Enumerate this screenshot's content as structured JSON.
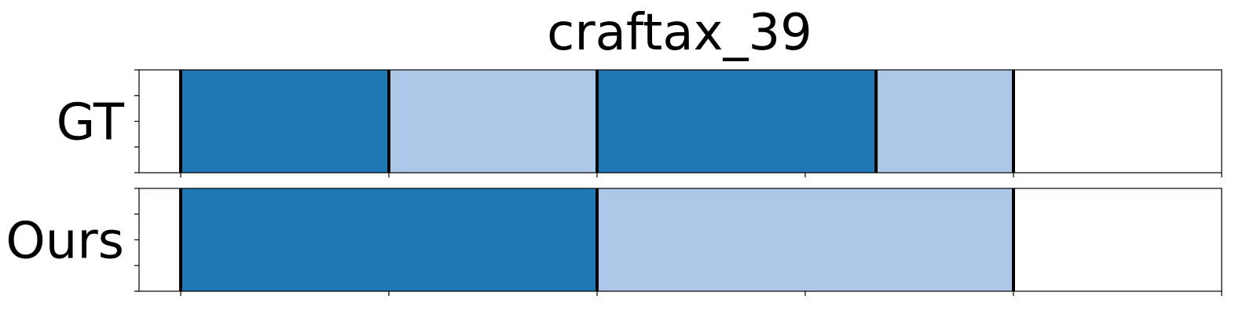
{
  "chart_data": {
    "type": "segmentation-timeline",
    "title": "craftax_39",
    "x_range": [
      -0.5,
      12.5
    ],
    "x_ticks": [
      0,
      2.5,
      5,
      7.5,
      10,
      12.5
    ],
    "y_ticks_per_row": 5,
    "grid": false,
    "colors": {
      "dark": "#1f77b4",
      "light": "#aec7e8",
      "boundary": "#000000"
    },
    "rows": [
      {
        "name": "GT",
        "segments": [
          {
            "start": 0,
            "end": 2.5,
            "color": "dark"
          },
          {
            "start": 2.5,
            "end": 5,
            "color": "light"
          },
          {
            "start": 5,
            "end": 8.35,
            "color": "dark"
          },
          {
            "start": 8.35,
            "end": 10,
            "color": "light"
          }
        ],
        "boundaries": [
          0,
          2.5,
          5,
          8.35,
          10
        ]
      },
      {
        "name": "Ours",
        "segments": [
          {
            "start": 0,
            "end": 5,
            "color": "dark"
          },
          {
            "start": 5,
            "end": 10,
            "color": "light"
          }
        ],
        "boundaries": [
          0,
          5,
          10
        ]
      }
    ]
  }
}
